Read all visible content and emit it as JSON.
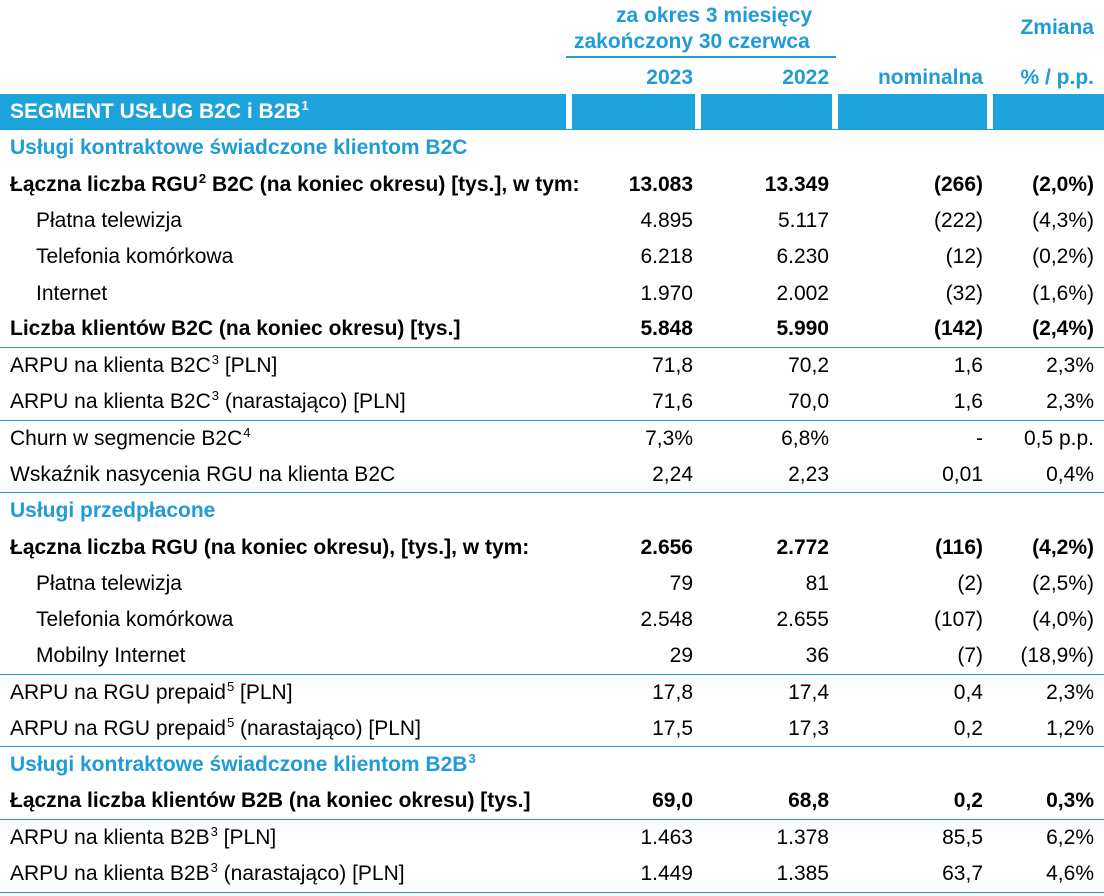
{
  "header": {
    "period_line1": "za okres 3 miesięcy",
    "period_line2": "zakończony 30 czerwca",
    "change_title": "Zmiana",
    "col_2023": "2023",
    "col_2022": "2022",
    "col_nominal": "nominalna",
    "col_pct": "% / p.p."
  },
  "rows": [
    {
      "type": "seg",
      "label": "SEGMENT USŁUG B2C i B2B",
      "sup": "1"
    },
    {
      "type": "sec",
      "label": "Usługi kontraktowe świadczone klientom B2C",
      "nob": true
    },
    {
      "type": "data",
      "bold": true,
      "label": "Łączna liczba RGU",
      "sup": "2",
      "label_after": " B2C (na koniec okresu) [tys.], w tym:",
      "v2023": "13.083",
      "v2022": "13.349",
      "nom": "(266)",
      "pct": "(2,0%)",
      "nob": true
    },
    {
      "type": "data",
      "indent": true,
      "label": "Płatna telewizja",
      "v2023": "4.895",
      "v2022": "5.117",
      "nom": "(222)",
      "pct": "(4,3%)",
      "nob": true
    },
    {
      "type": "data",
      "indent": true,
      "label": "Telefonia komórkowa",
      "v2023": "6.218",
      "v2022": "6.230",
      "nom": "(12)",
      "pct": "(0,2%)",
      "nob": true
    },
    {
      "type": "data",
      "indent": true,
      "label": "Internet",
      "v2023": "1.970",
      "v2022": "2.002",
      "nom": "(32)",
      "pct": "(1,6%)",
      "nob": true
    },
    {
      "type": "data",
      "bold": true,
      "label": "Liczba klientów B2C (na koniec okresu) [tys.]",
      "v2023": "5.848",
      "v2022": "5.990",
      "nom": "(142)",
      "pct": "(2,4%)"
    },
    {
      "type": "data",
      "label": "ARPU na klienta B2C",
      "sup": "3",
      "label_after": " [PLN]",
      "v2023": "71,8",
      "v2022": "70,2",
      "nom": "1,6",
      "pct": "2,3%",
      "nob": true
    },
    {
      "type": "data",
      "label": "ARPU na klienta B2C",
      "sup": "3",
      "label_after": " (narastająco) [PLN]",
      "v2023": "71,6",
      "v2022": "70,0",
      "nom": "1,6",
      "pct": "2,3%"
    },
    {
      "type": "data",
      "label": "Churn w segmencie B2C",
      "sup": "4",
      "label_after": "",
      "v2023": "7,3%",
      "v2022": "6,8%",
      "nom": "-",
      "pct": "0,5 p.p.",
      "nob": true
    },
    {
      "type": "data",
      "label": "Wskaźnik nasycenia RGU na klienta B2C",
      "v2023": "2,24",
      "v2022": "2,23",
      "nom": "0,01",
      "pct": "0,4%"
    },
    {
      "type": "sec",
      "label": "Usługi przedpłacone",
      "nob": true
    },
    {
      "type": "data",
      "bold": true,
      "label": "Łączna liczba RGU (na koniec okresu), [tys.], w tym:",
      "v2023": "2.656",
      "v2022": "2.772",
      "nom": "(116)",
      "pct": "(4,2%)",
      "nob": true
    },
    {
      "type": "data",
      "indent": true,
      "label": "Płatna telewizja",
      "v2023": "79",
      "v2022": "81",
      "nom": "(2)",
      "pct": "(2,5%)",
      "nob": true
    },
    {
      "type": "data",
      "indent": true,
      "label": "Telefonia komórkowa",
      "v2023": "2.548",
      "v2022": "2.655",
      "nom": "(107)",
      "pct": "(4,0%)",
      "nob": true
    },
    {
      "type": "data",
      "indent": true,
      "label": "Mobilny Internet",
      "v2023": "29",
      "v2022": "36",
      "nom": "(7)",
      "pct": "(18,9%)"
    },
    {
      "type": "data",
      "label": "ARPU na RGU prepaid",
      "sup": "5",
      "label_after": " [PLN]",
      "v2023": "17,8",
      "v2022": "17,4",
      "nom": "0,4",
      "pct": "2,3%",
      "nob": true
    },
    {
      "type": "data",
      "label": "ARPU na RGU prepaid",
      "sup": "5",
      "label_after": " (narastająco) [PLN]",
      "v2023": "17,5",
      "v2022": "17,3",
      "nom": "0,2",
      "pct": "1,2%"
    },
    {
      "type": "sec",
      "label": "Usługi kontraktowe świadczone klientom B2B",
      "sup": "3",
      "nob": true
    },
    {
      "type": "data",
      "bold": true,
      "label": "Łączna liczba klientów B2B (na koniec okresu) [tys.]",
      "v2023": "69,0",
      "v2022": "68,8",
      "nom": "0,2",
      "pct": "0,3%"
    },
    {
      "type": "data",
      "label": "ARPU na klienta B2B",
      "sup": "3",
      "label_after": " [PLN]",
      "v2023": "1.463",
      "v2022": "1.378",
      "nom": "85,5",
      "pct": "6,2%",
      "nob": true
    },
    {
      "type": "data",
      "label": "ARPU na klienta B2B",
      "sup": "3",
      "label_after": " (narastająco) [PLN]",
      "v2023": "1.449",
      "v2022": "1.385",
      "nom": "63,7",
      "pct": "4,6%"
    }
  ]
}
